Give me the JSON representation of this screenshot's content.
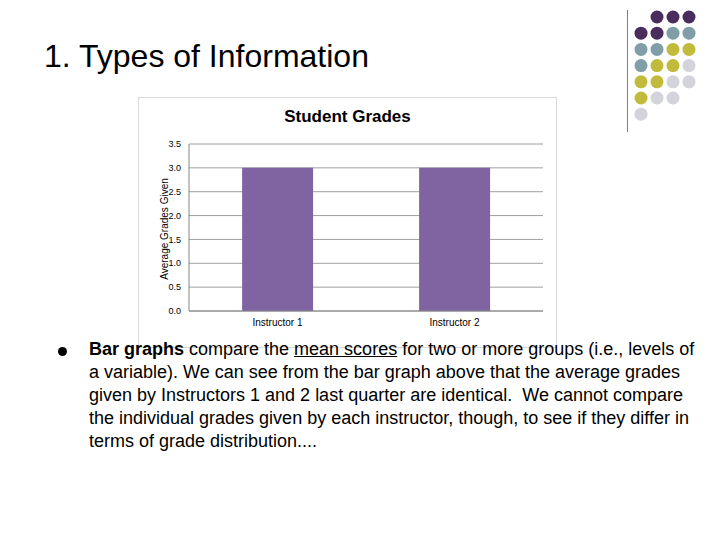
{
  "slide": {
    "title": "1. Types of Information",
    "paragraph": [
      {
        "text": "Bar graphs",
        "bold": true
      },
      {
        "text": " compare the "
      },
      {
        "text": "mean scores",
        "underline": true
      },
      {
        "text": " for two or more groups (i.e., levels of a variable). We can see from the bar graph above that the average grades given by Instructors 1 and 2 last quarter are identical.  We cannot compare the individual grades given by each instructor, though, to see if they differ in terms of grade distribution...."
      }
    ]
  },
  "chart_data": {
    "type": "bar",
    "title": "Student Grades",
    "y_label": "Average Grades Given",
    "categories": [
      "Instructor 1",
      "Instructor 2"
    ],
    "values": [
      3.0,
      3.0
    ],
    "color": "#8064a2",
    "ylim": [
      0,
      3.5
    ],
    "yticks": [
      {
        "value": 0,
        "label": "0.0"
      },
      0.5,
      {
        "value": 1,
        "label": "1.0"
      },
      1.5,
      {
        "value": 2,
        "label": "2.0"
      },
      2.5,
      {
        "value": 3,
        "label": "3.0"
      },
      3.5
    ],
    "grid": true
  }
}
